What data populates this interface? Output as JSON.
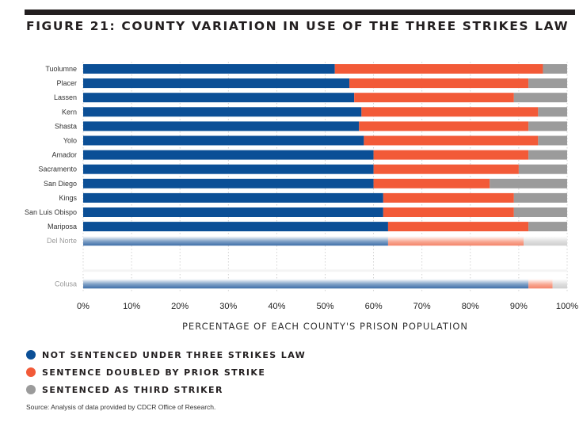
{
  "figure": {
    "title": "FIGURE 21: COUNTY VARIATION IN USE OF THE THREE STRIKES LAW",
    "source": "Source: Analysis of data provided by CDCR Office of Research."
  },
  "chart_data": {
    "type": "bar",
    "orientation": "horizontal",
    "stacked": true,
    "title": "FIGURE 21: COUNTY VARIATION IN USE OF THE THREE STRIKES LAW",
    "xlabel": "PERCENTAGE OF EACH COUNTY'S PRISON POPULATION",
    "ylabel": "",
    "xlim": [
      0,
      100
    ],
    "x_ticks": [
      "0%",
      "10%",
      "20%",
      "30%",
      "40%",
      "50%",
      "60%",
      "70%",
      "80%",
      "90%",
      "100%"
    ],
    "grid": "vertical dotted",
    "legend_position": "bottom-left",
    "categories": [
      "Tuolumne",
      "Placer",
      "Lassen",
      "Kern",
      "Shasta",
      "Yolo",
      "Amador",
      "Sacramento",
      "San Diego",
      "Kings",
      "San Luis Obispo",
      "Mariposa",
      "Del Norte",
      "Colusa"
    ],
    "faded_categories": [
      "Del Norte",
      "Colusa"
    ],
    "gap_before": "Colusa",
    "series": [
      {
        "name": "NOT SENTENCED UNDER THREE STRIKES LAW",
        "color": "#0b4f96",
        "values": [
          52,
          55,
          56,
          57.5,
          57,
          58,
          60,
          60,
          60,
          62,
          62,
          63,
          63,
          92
        ]
      },
      {
        "name": "SENTENCE DOUBLED BY PRIOR STRIKE",
        "color": "#f25a38",
        "values": [
          43,
          37,
          33,
          36.5,
          35,
          36,
          32,
          30,
          24,
          27,
          27,
          29,
          28,
          5
        ]
      },
      {
        "name": "SENTENCED AS THIRD STRIKER",
        "color": "#9b9b9b",
        "values": [
          5,
          8,
          11,
          6,
          8,
          6,
          8,
          10,
          16,
          11,
          11,
          8,
          9,
          3
        ]
      }
    ]
  }
}
